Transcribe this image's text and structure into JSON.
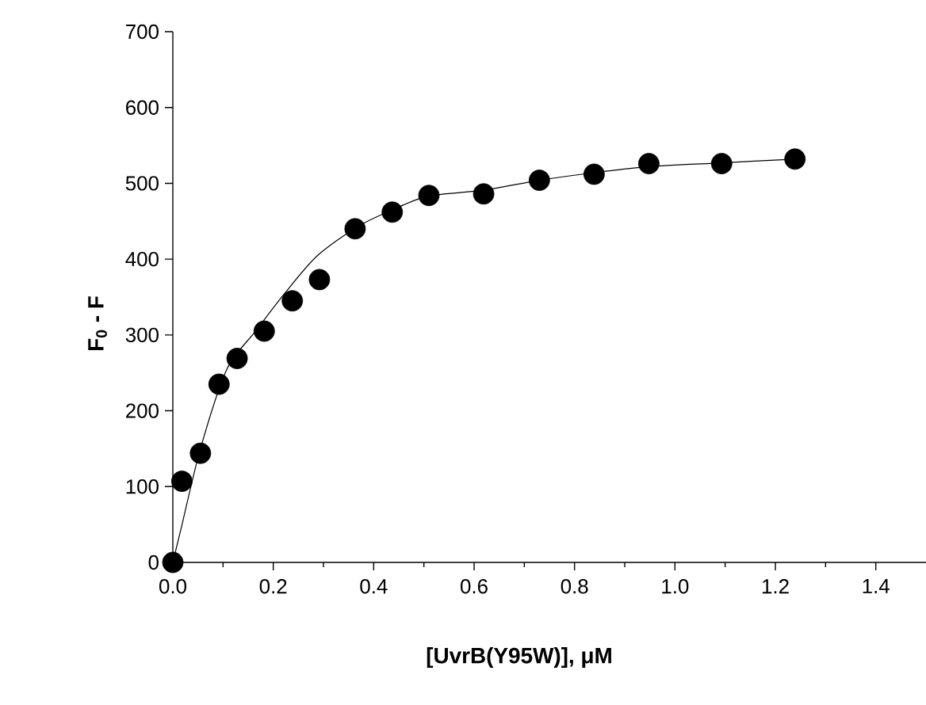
{
  "chart_data": {
    "type": "scatter",
    "xlabel": "[UvrB(Y95W)], μM",
    "ylabel": "F$_{0}$ - F",
    "xlim": [
      0,
      1.5
    ],
    "ylim": [
      0,
      700
    ],
    "xticks": [
      {
        "value": 0,
        "label": "0.0"
      },
      {
        "value": 0.2,
        "label": "0.2"
      },
      {
        "value": 0.4,
        "label": "0.4"
      },
      {
        "value": 0.6,
        "label": "0.6"
      },
      {
        "value": 0.8,
        "label": "0.8"
      },
      {
        "value": 1.0,
        "label": "1.0"
      },
      {
        "value": 1.2,
        "label": "1.2"
      },
      {
        "value": 1.4,
        "label": "1.4"
      }
    ],
    "yticks": [
      0,
      100,
      200,
      300,
      400,
      500,
      600,
      700
    ],
    "grid": false,
    "series": [
      {
        "type": "line",
        "color": "#000000",
        "marker": "none",
        "line_style": "solid",
        "x": [
          0,
          0.018,
          0.055,
          0.107,
          0.166,
          0.223,
          0.287,
          0.366,
          0.434,
          0.508,
          0.619,
          0.73,
          0.839,
          0.948,
          1.093,
          1.239
        ],
        "values": [
          0,
          49,
          150,
          254,
          306,
          355,
          404,
          442,
          464,
          483,
          491,
          504,
          514,
          522,
          527,
          532
        ]
      },
      {
        "color": "#000000",
        "marker": "circle",
        "x": [
          0,
          0.018,
          0.055,
          0.092,
          0.128,
          0.182,
          0.238,
          0.292,
          0.363,
          0.437,
          0.51,
          0.619,
          0.73,
          0.839,
          0.948,
          1.093,
          1.239
        ],
        "values": [
          0,
          107,
          144,
          235,
          269,
          305,
          345,
          373,
          440,
          462,
          484,
          486,
          504,
          512,
          526,
          526,
          532
        ]
      }
    ]
  }
}
